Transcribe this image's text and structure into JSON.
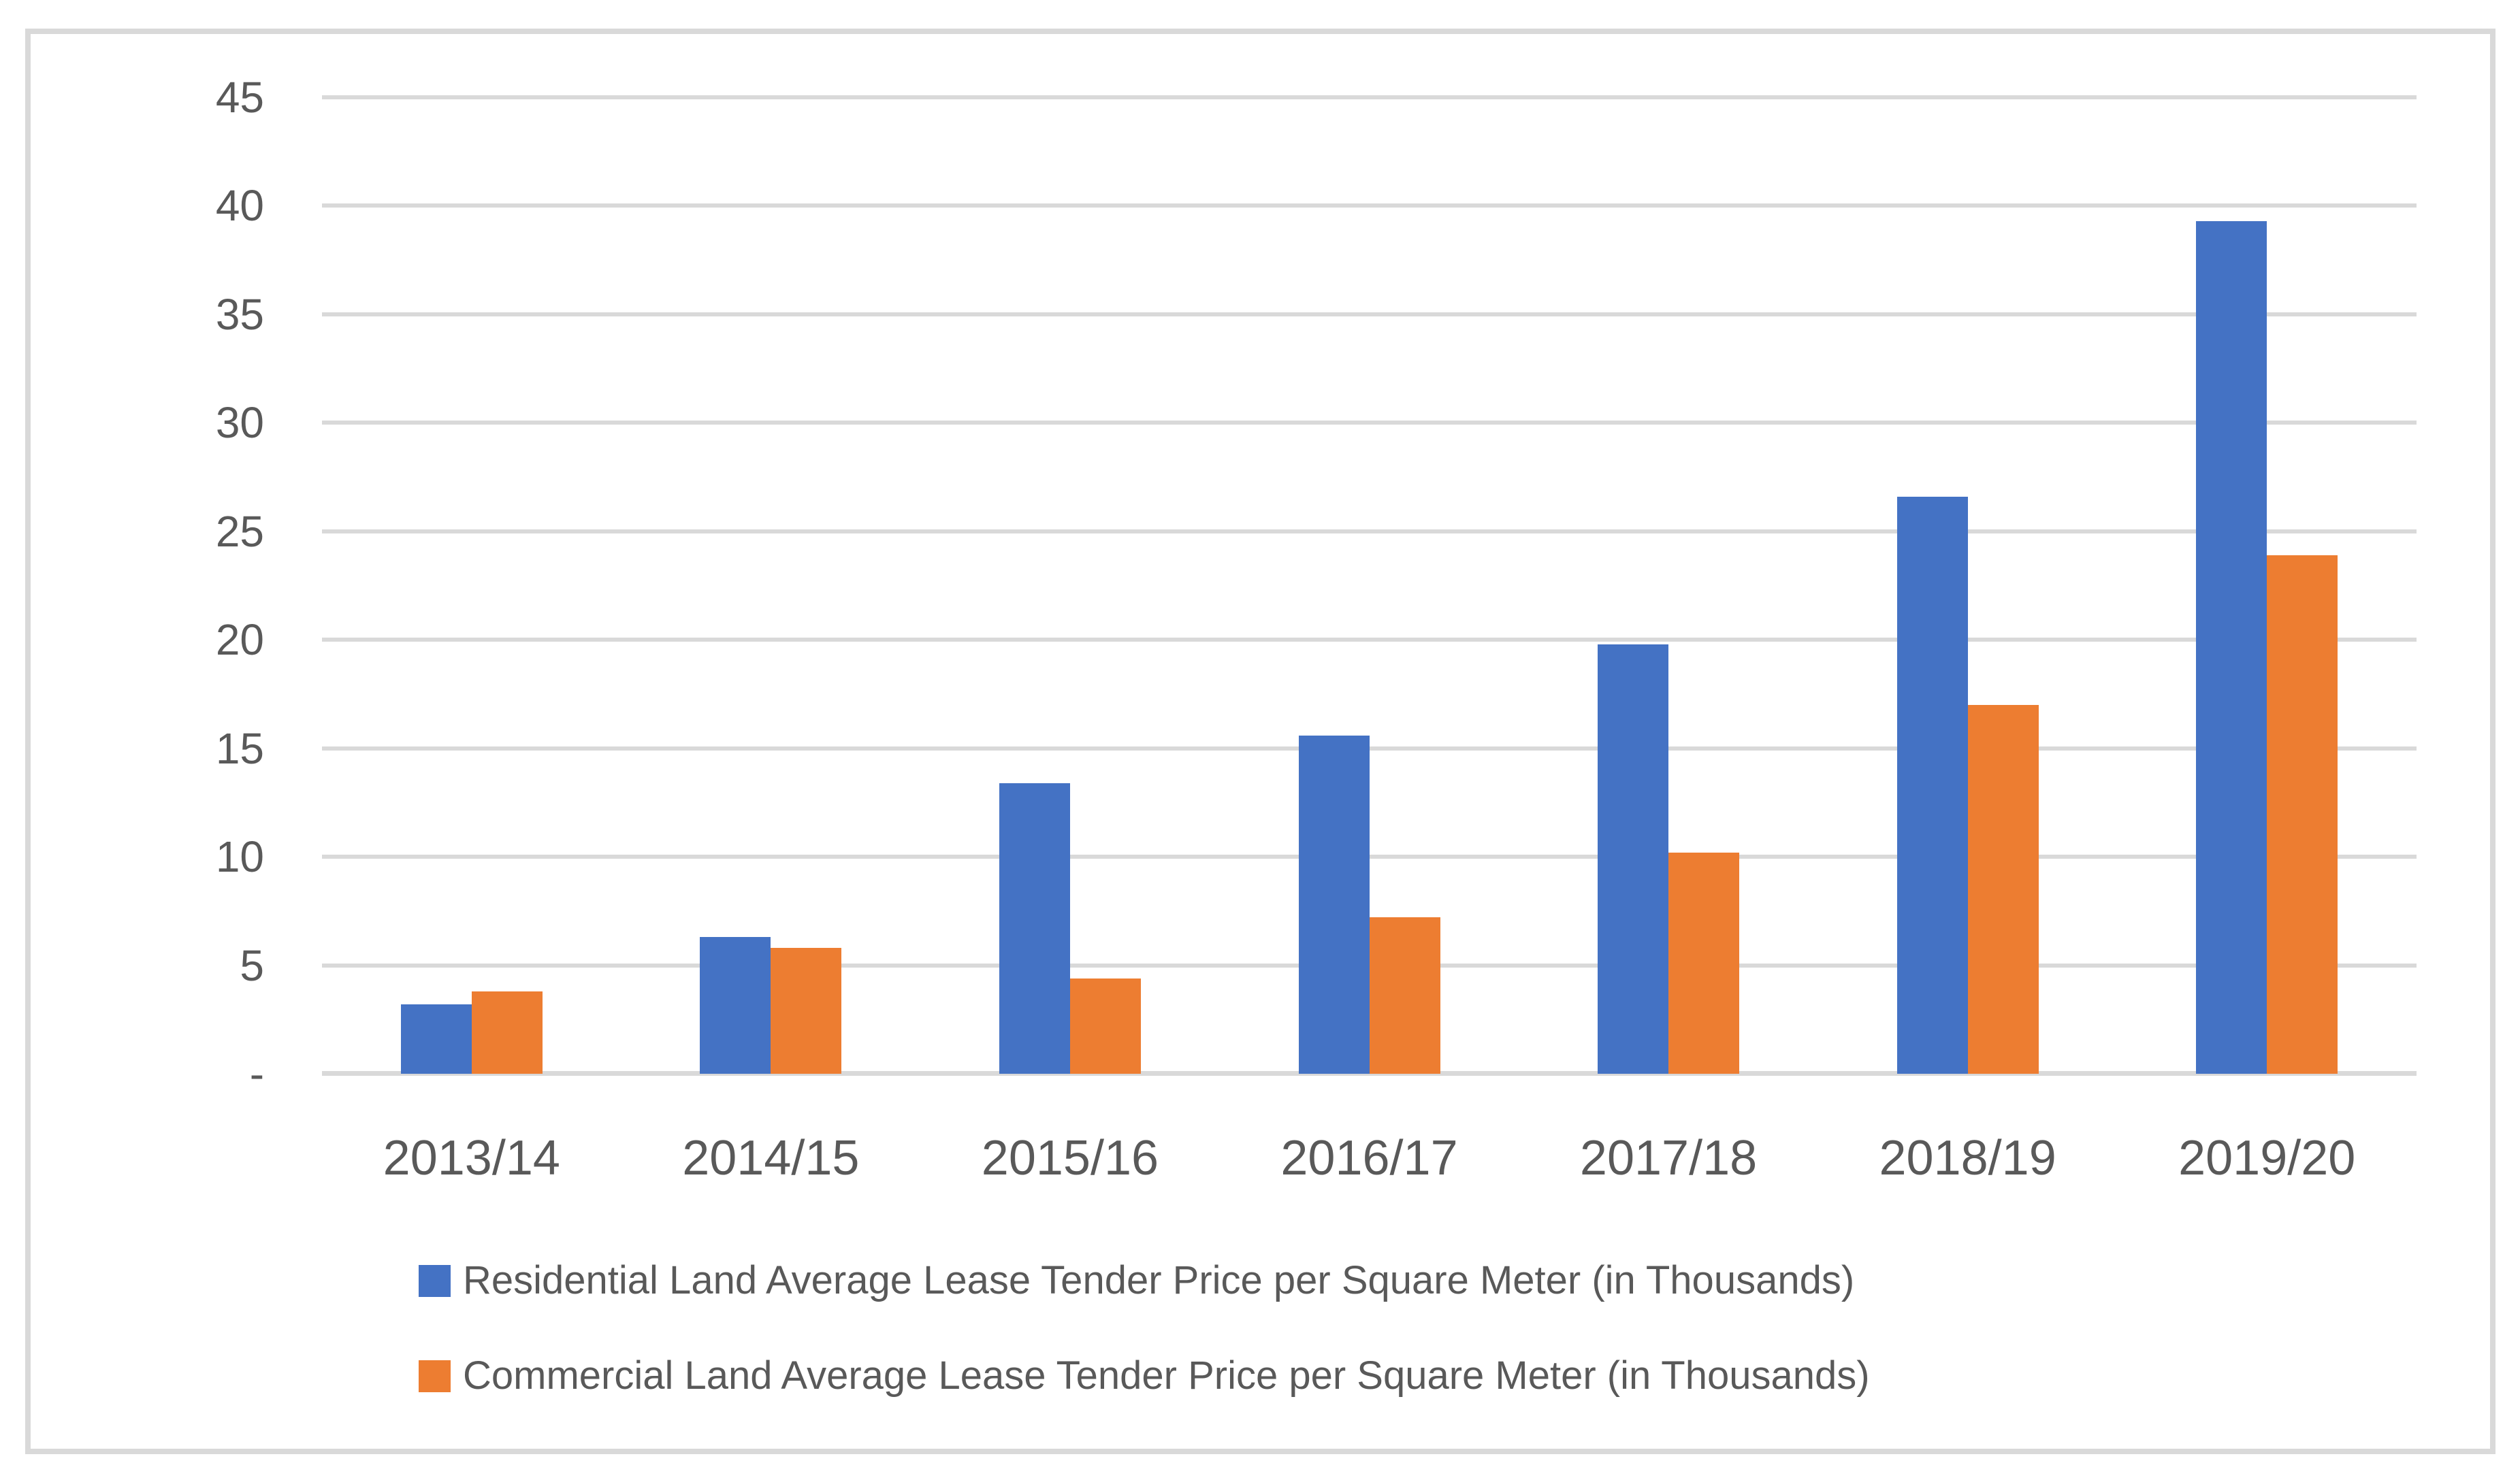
{
  "chart_data": {
    "type": "bar",
    "title": "",
    "xlabel": "",
    "ylabel": "",
    "categories": [
      "2013/14",
      "2014/15",
      "2015/16",
      "2016/17",
      "2017/18",
      "2018/19",
      "2019/20"
    ],
    "series": [
      {
        "name": "Residential Land Average Lease Tender Price per Square Meter (in Thousands)",
        "color": "#4472C4",
        "values": [
          3.2,
          6.3,
          13.4,
          15.6,
          19.8,
          26.6,
          39.3
        ]
      },
      {
        "name": "Commercial Land Average Lease Tender Price per Square Meter (in Thousands)",
        "color": "#ED7D31",
        "values": [
          3.8,
          5.8,
          4.4,
          7.2,
          10.2,
          17.0,
          23.9
        ]
      }
    ],
    "ylim": [
      0,
      45
    ],
    "y_ticks": [
      {
        "value": 45,
        "label": "45"
      },
      {
        "value": 40,
        "label": "40"
      },
      {
        "value": 35,
        "label": "35"
      },
      {
        "value": 30,
        "label": "30"
      },
      {
        "value": 25,
        "label": "25"
      },
      {
        "value": 20,
        "label": "20"
      },
      {
        "value": 15,
        "label": "15"
      },
      {
        "value": 10,
        "label": "10"
      },
      {
        "value": 5,
        "label": "5"
      },
      {
        "value": 0,
        "label": "-"
      }
    ],
    "grid": true,
    "legend_position": "bottom-left"
  },
  "colors": {
    "grid": "#D9D9D9",
    "frame_border": "#D9D9D9",
    "axis_text": "#595959",
    "background": "#FFFFFF"
  }
}
